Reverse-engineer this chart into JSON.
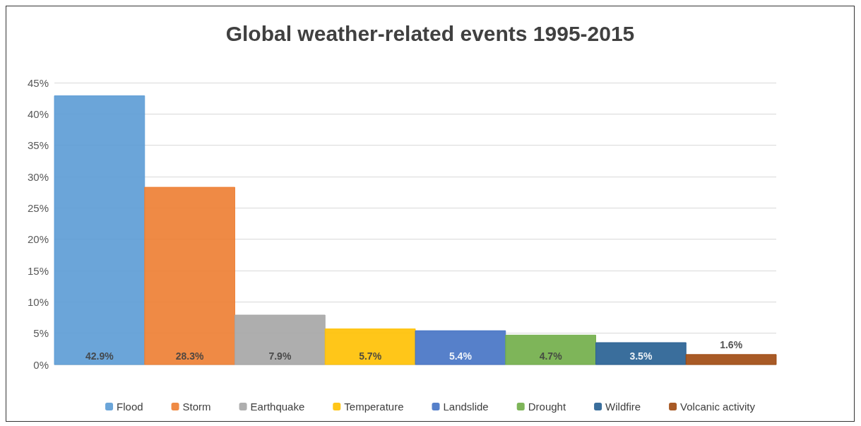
{
  "chart_data": {
    "type": "bar",
    "title": "Global weather-related events 1995-2015",
    "categories": [
      null,
      null,
      null,
      null,
      null,
      null,
      null,
      null
    ],
    "series": [
      {
        "name": "Flood",
        "color": "#5b9bd5",
        "values": [
          42.9,
          null,
          null,
          null,
          null,
          null,
          null,
          null
        ],
        "value_labels": [
          "42.9%",
          null,
          null,
          null,
          null,
          null,
          null,
          null
        ]
      },
      {
        "name": "Storm",
        "color": "#ed7d31",
        "values": [
          null,
          28.3,
          null,
          null,
          null,
          null,
          null,
          null
        ],
        "value_labels": [
          null,
          "28.3%",
          null,
          null,
          null,
          null,
          null,
          null
        ]
      },
      {
        "name": "Earthquake",
        "color": "#a5a5a5",
        "values": [
          null,
          null,
          7.9,
          null,
          null,
          null,
          null,
          null
        ],
        "value_labels": [
          null,
          null,
          "7.9%",
          null,
          null,
          null,
          null,
          null
        ]
      },
      {
        "name": "Temperature",
        "color": "#ffc000",
        "values": [
          null,
          null,
          null,
          5.7,
          null,
          null,
          null,
          null
        ],
        "value_labels": [
          null,
          null,
          null,
          "5.7%",
          null,
          null,
          null,
          null
        ]
      },
      {
        "name": "Landslide",
        "color": "#4472c4",
        "values": [
          null,
          null,
          null,
          null,
          5.4,
          null,
          null,
          null
        ],
        "value_labels": [
          null,
          null,
          null,
          null,
          "5.4%",
          null,
          null,
          null
        ]
      },
      {
        "name": "Drought",
        "color": "#70ad47",
        "values": [
          null,
          null,
          null,
          null,
          null,
          4.7,
          null,
          null
        ],
        "value_labels": [
          null,
          null,
          null,
          null,
          null,
          "4.7%",
          null,
          null
        ]
      },
      {
        "name": "Wildfire",
        "color": "#255e91",
        "values": [
          null,
          null,
          null,
          null,
          null,
          null,
          3.5,
          null
        ],
        "value_labels": [
          null,
          null,
          null,
          null,
          null,
          null,
          "3.5%",
          null
        ]
      },
      {
        "name": "Volcanic activity",
        "color": "#9e480e",
        "values": [
          null,
          null,
          null,
          null,
          null,
          null,
          null,
          1.6
        ],
        "value_labels": [
          null,
          null,
          null,
          null,
          null,
          null,
          null,
          "1.6%"
        ]
      }
    ],
    "ylim": [
      0,
      45
    ],
    "yticks": [
      {
        "value": 0,
        "label": "0%"
      },
      {
        "value": 5,
        "label": "5%"
      },
      {
        "value": 10,
        "label": "10%"
      },
      {
        "value": 15,
        "label": "15%"
      },
      {
        "value": 20,
        "label": "20%"
      },
      {
        "value": 25,
        "label": "25%"
      },
      {
        "value": 30,
        "label": "30%"
      },
      {
        "value": 35,
        "label": "35%"
      },
      {
        "value": 40,
        "label": "40%"
      },
      {
        "value": 45,
        "label": "45%"
      }
    ],
    "grid": "y",
    "legend": "bottom"
  }
}
